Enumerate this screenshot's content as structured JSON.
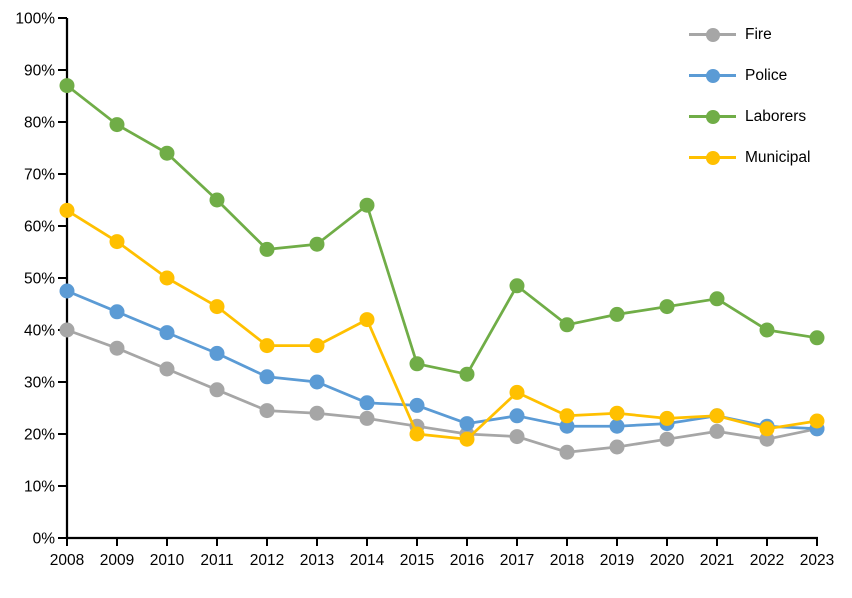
{
  "chart_data": {
    "type": "line",
    "title": "",
    "xlabel": "",
    "ylabel": "",
    "x": [
      "2008",
      "2009",
      "2010",
      "2011",
      "2012",
      "2013",
      "2014",
      "2015",
      "2016",
      "2017",
      "2018",
      "2019",
      "2020",
      "2021",
      "2022",
      "2023"
    ],
    "series": [
      {
        "name": "Fire",
        "color": "#a6a6a6",
        "values": [
          40,
          36.5,
          32.5,
          28.5,
          24.5,
          24,
          23,
          21.5,
          20,
          19.5,
          16.5,
          17.5,
          19,
          20.5,
          19,
          21
        ]
      },
      {
        "name": "Police",
        "color": "#5b9bd5",
        "values": [
          47.5,
          43.5,
          39.5,
          35.5,
          31,
          30,
          26,
          25.5,
          22,
          23.5,
          21.5,
          21.5,
          22,
          23.5,
          21.5,
          21
        ]
      },
      {
        "name": "Laborers",
        "color": "#70ad47",
        "values": [
          87,
          79.5,
          74,
          65,
          55.5,
          56.5,
          64,
          33.5,
          31.5,
          48.5,
          41,
          43,
          44.5,
          46,
          40,
          38.5
        ]
      },
      {
        "name": "Municipal",
        "color": "#ffc000",
        "values": [
          63,
          57,
          50,
          44.5,
          37,
          37,
          42,
          20,
          19,
          28,
          23.5,
          24,
          23,
          23.5,
          21,
          22.5
        ]
      }
    ],
    "ylim": [
      0,
      100
    ],
    "y_tick_step": 10,
    "y_tick_suffix": "%",
    "grid": false,
    "legend_position": "top-right",
    "axis_color": "#000000",
    "text_color": "#000000",
    "background": "#ffffff"
  }
}
